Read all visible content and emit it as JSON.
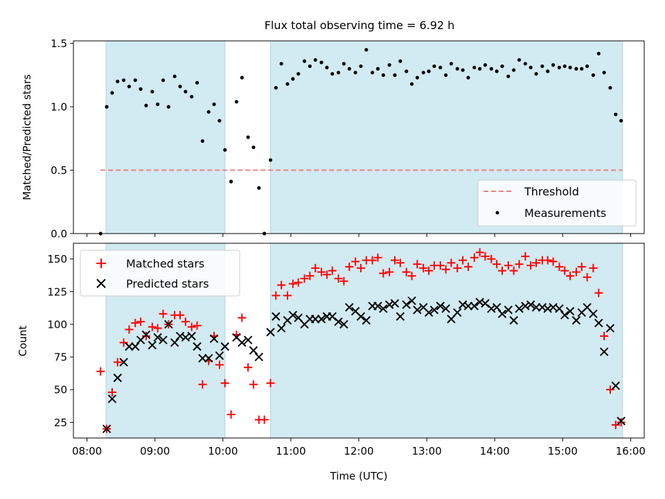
{
  "title": "Flux total observing time = 6.92 h",
  "xlabel": "Time (UTC)",
  "x_ticks": [
    {
      "label": "08:00",
      "value": 8.0
    },
    {
      "label": "09:00",
      "value": 9.0
    },
    {
      "label": "10:00",
      "value": 10.0
    },
    {
      "label": "11:00",
      "value": 11.0
    },
    {
      "label": "12:00",
      "value": 12.0
    },
    {
      "label": "13:00",
      "value": 13.0
    },
    {
      "label": "14:00",
      "value": 14.0
    },
    {
      "label": "15:00",
      "value": 15.0
    },
    {
      "label": "16:00",
      "value": 16.0
    }
  ],
  "colors": {
    "shade": "#add8e6",
    "threshold": "#f08080",
    "matched": "#ff0000",
    "predicted": "#000000",
    "measurements": "#000000"
  },
  "chart_data": [
    {
      "type": "scatter",
      "ylabel": "Matched/Predicted stars",
      "xlim": [
        7.8,
        16.2
      ],
      "ylim": [
        0.0,
        1.52
      ],
      "y_ticks": [
        "0.0",
        "0.5",
        "1.0",
        "1.5"
      ],
      "shaded_regions": [
        [
          8.28,
          10.03
        ],
        [
          10.7,
          15.88
        ]
      ],
      "threshold": {
        "value": 0.5,
        "x_range": [
          8.2,
          15.88
        ],
        "style": "dashed"
      },
      "legend": {
        "position": "lower-right",
        "entries": [
          "Threshold",
          "Measurements"
        ]
      },
      "series": [
        {
          "name": "Measurements",
          "marker": "dot",
          "x": [
            8.2,
            8.29,
            8.37,
            8.45,
            8.54,
            8.62,
            8.71,
            8.79,
            8.87,
            8.96,
            9.04,
            9.12,
            9.2,
            9.29,
            9.37,
            9.45,
            9.54,
            9.62,
            9.7,
            9.79,
            9.87,
            9.95,
            10.03,
            10.12,
            10.2,
            10.28,
            10.37,
            10.45,
            10.53,
            10.61,
            10.7,
            10.78,
            10.86,
            10.95,
            11.03,
            11.11,
            11.2,
            11.28,
            11.36,
            11.45,
            11.53,
            11.61,
            11.7,
            11.78,
            11.86,
            11.95,
            12.03,
            12.11,
            12.2,
            12.28,
            12.36,
            12.45,
            12.53,
            12.61,
            12.7,
            12.78,
            12.86,
            12.95,
            13.03,
            13.11,
            13.2,
            13.28,
            13.36,
            13.45,
            13.53,
            13.61,
            13.7,
            13.78,
            13.86,
            13.95,
            14.03,
            14.11,
            14.2,
            14.28,
            14.36,
            14.45,
            14.53,
            14.61,
            14.7,
            14.78,
            14.86,
            14.95,
            15.03,
            15.11,
            15.2,
            15.28,
            15.36,
            15.45,
            15.53,
            15.61,
            15.7,
            15.78,
            15.86
          ],
          "y": [
            0.0,
            1.0,
            1.11,
            1.2,
            1.21,
            1.16,
            1.21,
            1.14,
            1.01,
            1.12,
            1.02,
            1.21,
            1.0,
            1.24,
            1.16,
            1.12,
            1.08,
            1.19,
            0.73,
            0.96,
            1.02,
            0.89,
            0.66,
            0.41,
            1.04,
            1.23,
            0.76,
            0.68,
            0.36,
            0.0,
            0.58,
            1.15,
            1.34,
            1.18,
            1.22,
            1.26,
            1.36,
            1.32,
            1.37,
            1.35,
            1.31,
            1.26,
            1.27,
            1.34,
            1.3,
            1.27,
            1.32,
            1.45,
            1.27,
            1.3,
            1.25,
            1.33,
            1.25,
            1.36,
            1.28,
            1.18,
            1.23,
            1.27,
            1.28,
            1.32,
            1.31,
            1.25,
            1.34,
            1.3,
            1.29,
            1.23,
            1.31,
            1.3,
            1.33,
            1.3,
            1.28,
            1.32,
            1.24,
            1.29,
            1.37,
            1.34,
            1.31,
            1.26,
            1.32,
            1.28,
            1.33,
            1.31,
            1.32,
            1.31,
            1.3,
            1.3,
            1.32,
            1.25,
            1.42,
            1.27,
            1.15,
            0.94,
            0.89
          ]
        }
      ]
    },
    {
      "type": "scatter",
      "ylabel": "Count",
      "xlim": [
        7.8,
        16.2
      ],
      "ylim": [
        13.0,
        162.0
      ],
      "y_ticks": [
        "25",
        "50",
        "75",
        "100",
        "125",
        "150"
      ],
      "shaded_regions": [
        [
          8.28,
          10.03
        ],
        [
          10.7,
          15.88
        ]
      ],
      "legend": {
        "position": "top-left",
        "entries": [
          "Matched stars",
          "Predicted stars"
        ]
      },
      "series": [
        {
          "name": "Matched stars",
          "marker": "plus",
          "x": [
            8.2,
            8.29,
            8.37,
            8.45,
            8.54,
            8.62,
            8.71,
            8.79,
            8.87,
            8.96,
            9.04,
            9.12,
            9.2,
            9.29,
            9.37,
            9.45,
            9.54,
            9.62,
            9.7,
            9.79,
            9.87,
            9.95,
            10.03,
            10.12,
            10.2,
            10.28,
            10.37,
            10.45,
            10.53,
            10.61,
            10.7,
            10.78,
            10.86,
            10.95,
            11.03,
            11.11,
            11.2,
            11.28,
            11.36,
            11.45,
            11.53,
            11.61,
            11.7,
            11.78,
            11.86,
            11.95,
            12.03,
            12.11,
            12.2,
            12.28,
            12.36,
            12.45,
            12.53,
            12.61,
            12.7,
            12.78,
            12.86,
            12.95,
            13.03,
            13.11,
            13.2,
            13.28,
            13.36,
            13.45,
            13.53,
            13.61,
            13.7,
            13.78,
            13.86,
            13.95,
            14.03,
            14.11,
            14.2,
            14.28,
            14.36,
            14.45,
            14.53,
            14.61,
            14.7,
            14.78,
            14.86,
            14.95,
            15.03,
            15.11,
            15.2,
            15.28,
            15.36,
            15.45,
            15.53,
            15.61,
            15.7,
            15.78,
            15.86
          ],
          "y": [
            64,
            20,
            48,
            71,
            86,
            96,
            101,
            102,
            91,
            98,
            97,
            108,
            100,
            107,
            107,
            102,
            98,
            99,
            54,
            72,
            91,
            69,
            55,
            31,
            92,
            105,
            67,
            54,
            27,
            27,
            55,
            122,
            130,
            122,
            131,
            132,
            135,
            137,
            143,
            140,
            138,
            141,
            135,
            133,
            144,
            148,
            143,
            149,
            149,
            151,
            139,
            140,
            149,
            147,
            140,
            137,
            146,
            143,
            141,
            145,
            145,
            142,
            147,
            143,
            149,
            144,
            151,
            155,
            152,
            150,
            146,
            141,
            145,
            141,
            146,
            152,
            145,
            147,
            149,
            149,
            148,
            144,
            141,
            137,
            140,
            144,
            136,
            143,
            124,
            91,
            50,
            23,
            25
          ]
        },
        {
          "name": "Predicted stars",
          "marker": "x",
          "x": [
            8.29,
            8.37,
            8.45,
            8.54,
            8.62,
            8.71,
            8.79,
            8.87,
            8.96,
            9.04,
            9.12,
            9.2,
            9.29,
            9.37,
            9.45,
            9.54,
            9.62,
            9.7,
            9.79,
            9.87,
            9.95,
            10.03,
            10.2,
            10.28,
            10.37,
            10.45,
            10.53,
            10.7,
            10.78,
            10.86,
            10.95,
            11.03,
            11.11,
            11.2,
            11.28,
            11.36,
            11.45,
            11.53,
            11.61,
            11.7,
            11.78,
            11.86,
            11.95,
            12.03,
            12.11,
            12.2,
            12.28,
            12.36,
            12.45,
            12.53,
            12.61,
            12.7,
            12.78,
            12.86,
            12.95,
            13.03,
            13.11,
            13.2,
            13.28,
            13.36,
            13.45,
            13.53,
            13.61,
            13.7,
            13.78,
            13.86,
            13.95,
            14.03,
            14.11,
            14.2,
            14.28,
            14.36,
            14.45,
            14.53,
            14.61,
            14.7,
            14.78,
            14.86,
            14.95,
            15.03,
            15.11,
            15.2,
            15.28,
            15.36,
            15.45,
            15.53,
            15.61,
            15.7,
            15.78,
            15.86
          ],
          "y": [
            20,
            43,
            59,
            71,
            83,
            83,
            88,
            92,
            84,
            90,
            88,
            100,
            86,
            91,
            90,
            91,
            83,
            74,
            74,
            89,
            76,
            83,
            90,
            86,
            88,
            80,
            75,
            94,
            106,
            97,
            103,
            107,
            105,
            100,
            104,
            104,
            104,
            106,
            106,
            102,
            100,
            113,
            110,
            106,
            103,
            114,
            114,
            112,
            115,
            116,
            106,
            115,
            118,
            111,
            113,
            109,
            111,
            114,
            112,
            104,
            109,
            115,
            114,
            114,
            117,
            116,
            112,
            113,
            108,
            111,
            103,
            112,
            114,
            115,
            113,
            113,
            112,
            113,
            112,
            107,
            110,
            103,
            109,
            113,
            108,
            101,
            79,
            97,
            53,
            26
          ]
        }
      ]
    }
  ]
}
